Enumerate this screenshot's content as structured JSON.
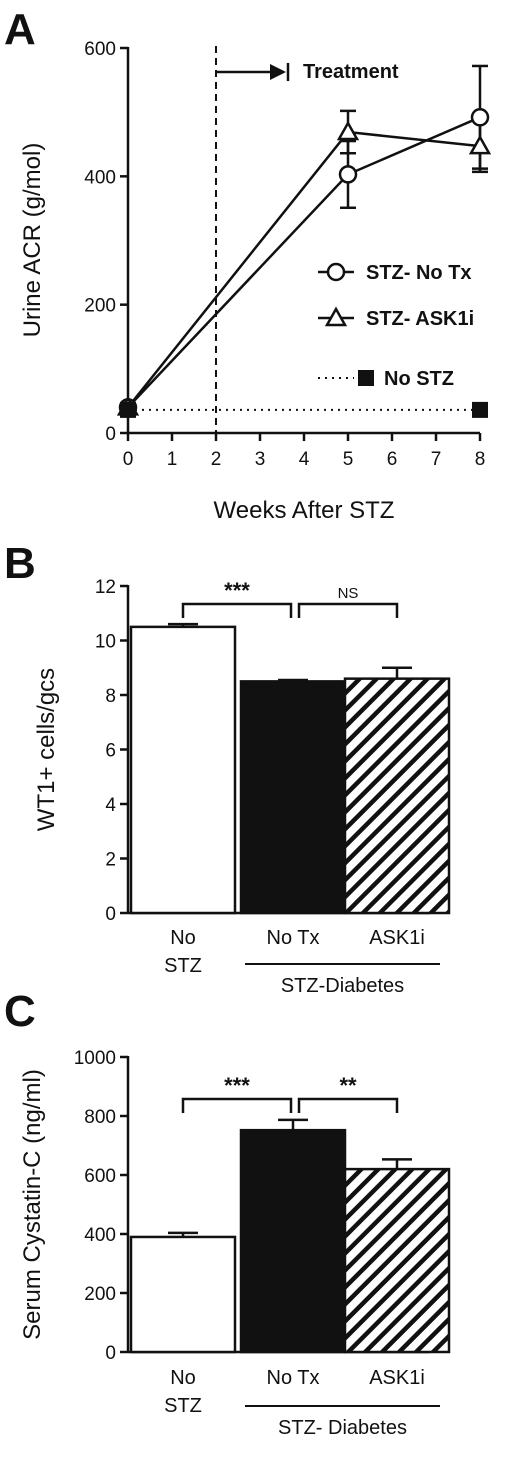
{
  "colors": {
    "ink": "#111111",
    "open": "#ffffff"
  },
  "chart_data": [
    {
      "panel": "A",
      "type": "line",
      "xlabel": "Weeks After STZ",
      "ylabel": "Urine ACR (g/mol)",
      "xlim": [
        0,
        8
      ],
      "ylim": [
        0,
        600
      ],
      "xticks": [
        "0",
        "1",
        "2",
        "3",
        "4",
        "5",
        "6",
        "7",
        "8"
      ],
      "yticks": [
        "0",
        "200",
        "400",
        "600"
      ],
      "annotation": {
        "label": "Treatment",
        "x": 2
      },
      "series": [
        {
          "name": "STZ- No Tx",
          "marker": "circle",
          "line": "solid",
          "x": [
            0,
            5,
            8
          ],
          "y": [
            40,
            403,
            492
          ],
          "err": [
            0,
            52,
            80
          ]
        },
        {
          "name": "STZ- ASK1i",
          "marker": "triangle",
          "line": "solid",
          "x": [
            0,
            5,
            8
          ],
          "y": [
            40,
            469,
            447
          ],
          "err": [
            0,
            33,
            40
          ]
        },
        {
          "name": "No STZ",
          "marker": "square",
          "line": "dotted",
          "x": [
            0,
            8
          ],
          "y": [
            36,
            36
          ],
          "err": [
            0,
            0
          ]
        }
      ]
    },
    {
      "panel": "B",
      "type": "bar",
      "ylabel": "WT1+ cells/gcs",
      "ylim": [
        0,
        12
      ],
      "yticks": [
        "0",
        "2",
        "4",
        "6",
        "8",
        "10",
        "12"
      ],
      "categories": [
        [
          "No",
          "STZ"
        ],
        [
          "No Tx"
        ],
        [
          "ASK1i"
        ]
      ],
      "group_label": "STZ-Diabetes",
      "values": [
        10.5,
        8.5,
        8.6
      ],
      "errors": [
        0.1,
        0.05,
        0.4
      ],
      "fills": [
        "open",
        "solid",
        "hatch"
      ],
      "significance": [
        {
          "from": 0,
          "to": 1,
          "label": "***"
        },
        {
          "from": 1,
          "to": 2,
          "label": "NS"
        }
      ]
    },
    {
      "panel": "C",
      "type": "bar",
      "ylabel": "Serum Cystatin-C (ng/ml)",
      "ylim": [
        0,
        1000
      ],
      "yticks": [
        "0",
        "200",
        "400",
        "600",
        "800",
        "1000"
      ],
      "categories": [
        [
          "No",
          "STZ"
        ],
        [
          "No Tx"
        ],
        [
          "ASK1i"
        ]
      ],
      "group_label": "STZ- Diabetes",
      "values": [
        390,
        752,
        620
      ],
      "errors": [
        14,
        35,
        33
      ],
      "fills": [
        "open",
        "solid",
        "hatch"
      ],
      "significance": [
        {
          "from": 0,
          "to": 1,
          "label": "***"
        },
        {
          "from": 1,
          "to": 2,
          "label": "**"
        }
      ]
    }
  ]
}
